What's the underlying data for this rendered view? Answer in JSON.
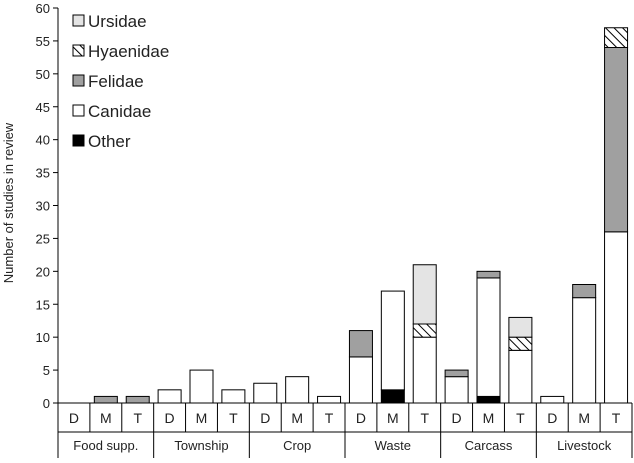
{
  "chart_data": {
    "type": "bar",
    "stacked": true,
    "ylabel": "Number of studies in review",
    "ylim": [
      0,
      60
    ],
    "yticks": [
      0,
      5,
      10,
      15,
      20,
      25,
      30,
      35,
      40,
      45,
      50,
      55,
      60
    ],
    "grid": false,
    "legend_position": "top-left",
    "groups": [
      "Food supp.",
      "Township",
      "Crop",
      "Waste",
      "Carcass",
      "Livestock"
    ],
    "subcategories": [
      "D",
      "M",
      "T"
    ],
    "categories": [
      "Food supp. D",
      "Food supp. M",
      "Food supp. T",
      "Township D",
      "Township M",
      "Township T",
      "Crop D",
      "Crop M",
      "Crop T",
      "Waste D",
      "Waste M",
      "Waste T",
      "Carcass D",
      "Carcass M",
      "Carcass T",
      "Livestock D",
      "Livestock M",
      "Livestock T"
    ],
    "series": [
      {
        "name": "Other",
        "color": "#000000",
        "pattern": "solid",
        "values": [
          0,
          0,
          0,
          0,
          0,
          0,
          0,
          0,
          0,
          0,
          2,
          0,
          0,
          1,
          0,
          0,
          0,
          0
        ]
      },
      {
        "name": "Canidae",
        "color": "#ffffff",
        "pattern": "solid",
        "values": [
          0,
          0,
          0,
          2,
          5,
          2,
          3,
          4,
          1,
          7,
          15,
          10,
          4,
          18,
          8,
          1,
          16,
          26
        ]
      },
      {
        "name": "Felidae",
        "color": "#a0a0a0",
        "pattern": "solid",
        "values": [
          0,
          1,
          1,
          0,
          0,
          0,
          0,
          0,
          0,
          4,
          0,
          0,
          1,
          1,
          0,
          0,
          2,
          28
        ]
      },
      {
        "name": "Hyaenidae",
        "color": "#ffffff",
        "pattern": "hatch",
        "values": [
          0,
          0,
          0,
          0,
          0,
          0,
          0,
          0,
          0,
          0,
          0,
          2,
          0,
          0,
          2,
          0,
          0,
          3
        ]
      },
      {
        "name": "Ursidae",
        "color": "#e4e4e4",
        "pattern": "solid",
        "values": [
          0,
          0,
          0,
          0,
          0,
          0,
          0,
          0,
          0,
          0,
          0,
          9,
          0,
          0,
          3,
          0,
          0,
          0
        ]
      }
    ],
    "legend_order": [
      "Ursidae",
      "Hyaenidae",
      "Felidae",
      "Canidae",
      "Other"
    ]
  }
}
